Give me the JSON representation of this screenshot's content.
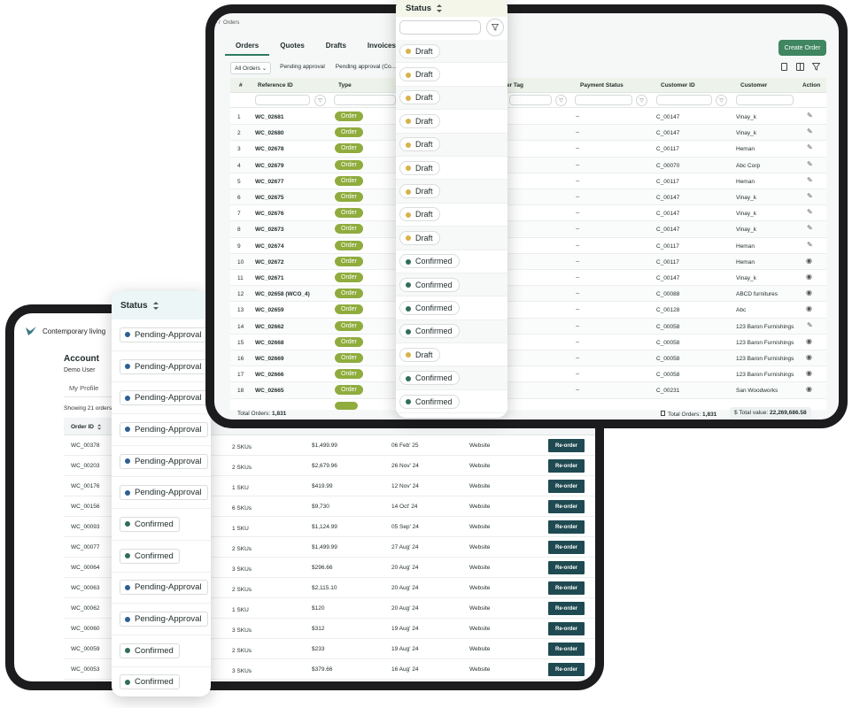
{
  "orders_screen": {
    "breadcrumb": "Orders",
    "tabs": [
      "Orders",
      "Quotes",
      "Drafts",
      "Invoices"
    ],
    "active_tab": "Orders",
    "create_button": "Create Order",
    "filters": [
      "All Orders",
      "Pending approval",
      "Pending approval (Co..."
    ],
    "columns": [
      "#",
      "Reference ID",
      "Type",
      "der Tag",
      "Payment Status",
      "Customer ID",
      "Customer",
      "Action"
    ],
    "rows": [
      {
        "n": "1",
        "ref": "WC_02681",
        "type": "Order",
        "pay": "--",
        "cid": "C_00147",
        "cust": "Vinay_k",
        "action": "edit"
      },
      {
        "n": "2",
        "ref": "WC_02680",
        "type": "Order",
        "pay": "--",
        "cid": "C_00147",
        "cust": "Vinay_k",
        "action": "edit"
      },
      {
        "n": "3",
        "ref": "WC_02678",
        "type": "Order",
        "pay": "--",
        "cid": "C_00117",
        "cust": "Heman",
        "action": "edit"
      },
      {
        "n": "4",
        "ref": "WC_02679",
        "type": "Order",
        "pay": "--",
        "cid": "C_00070",
        "cust": "Abc Corp",
        "action": "edit"
      },
      {
        "n": "5",
        "ref": "WC_02677",
        "type": "Order",
        "pay": "--",
        "cid": "C_00117",
        "cust": "Heman",
        "action": "edit"
      },
      {
        "n": "6",
        "ref": "WC_02675",
        "type": "Order",
        "pay": "--",
        "cid": "C_00147",
        "cust": "Vinay_k",
        "action": "edit"
      },
      {
        "n": "7",
        "ref": "WC_02676",
        "type": "Order",
        "pay": "--",
        "cid": "C_00147",
        "cust": "Vinay_k",
        "action": "edit"
      },
      {
        "n": "8",
        "ref": "WC_02673",
        "type": "Order",
        "pay": "--",
        "cid": "C_00147",
        "cust": "Vinay_k",
        "action": "edit"
      },
      {
        "n": "9",
        "ref": "WC_02674",
        "type": "Order",
        "pay": "--",
        "cid": "C_00117",
        "cust": "Heman",
        "action": "edit"
      },
      {
        "n": "10",
        "ref": "WC_02672",
        "type": "Order",
        "pay": "--",
        "cid": "C_00117",
        "cust": "Heman",
        "action": "view"
      },
      {
        "n": "11",
        "ref": "WC_02671",
        "type": "Order",
        "pay": "--",
        "cid": "C_00147",
        "cust": "Vinay_k",
        "action": "view"
      },
      {
        "n": "12",
        "ref": "WC_02658 (WCO_4)",
        "type": "Order",
        "pay": "--",
        "cid": "C_00088",
        "cust": "ABCD furnitures",
        "action": "view"
      },
      {
        "n": "13",
        "ref": "WC_02659",
        "type": "Order",
        "pay": "--",
        "cid": "C_00128",
        "cust": "Abc",
        "action": "view"
      },
      {
        "n": "14",
        "ref": "WC_02662",
        "type": "Order",
        "pay": "--",
        "cid": "C_00058",
        "cust": "123 Baron Furnishings",
        "action": "edit"
      },
      {
        "n": "15",
        "ref": "WC_02668",
        "type": "Order",
        "pay": "--",
        "cid": "C_00058",
        "cust": "123 Baron Furnishings",
        "action": "view"
      },
      {
        "n": "16",
        "ref": "WC_02669",
        "type": "Order",
        "pay": "--",
        "cid": "C_00058",
        "cust": "123 Baron Furnishings",
        "action": "view"
      },
      {
        "n": "17",
        "ref": "WC_02666",
        "type": "Order",
        "pay": "--",
        "cid": "C_00058",
        "cust": "123 Baron Furnishings",
        "action": "view"
      },
      {
        "n": "18",
        "ref": "WC_02665",
        "type": "Order",
        "pay": "--",
        "cid": "C_00231",
        "cust": "San Woodworks",
        "action": "view"
      }
    ],
    "footer_left_label": "Total Orders:",
    "footer_left_value": "1,831",
    "footer_mid_label": "Total Orders:",
    "footer_mid_value": "1,831",
    "footer_right_label": "Total value:",
    "footer_right_value": "22,269,686.58"
  },
  "status_popup_right": {
    "title": "Status",
    "items": [
      {
        "label": "Draft",
        "color": "#d8b24a"
      },
      {
        "label": "Draft",
        "color": "#d8b24a"
      },
      {
        "label": "Draft",
        "color": "#d8b24a"
      },
      {
        "label": "Draft",
        "color": "#d8b24a"
      },
      {
        "label": "Draft",
        "color": "#d8b24a"
      },
      {
        "label": "Draft",
        "color": "#d8b24a"
      },
      {
        "label": "Draft",
        "color": "#d8b24a"
      },
      {
        "label": "Draft",
        "color": "#d8b24a"
      },
      {
        "label": "Draft",
        "color": "#d8b24a"
      },
      {
        "label": "Confirmed",
        "color": "#2f6e5a"
      },
      {
        "label": "Confirmed",
        "color": "#2f6e5a"
      },
      {
        "label": "Confirmed",
        "color": "#2f6e5a"
      },
      {
        "label": "Confirmed",
        "color": "#2f6e5a"
      },
      {
        "label": "Draft",
        "color": "#d8b24a"
      },
      {
        "label": "Confirmed",
        "color": "#2f6e5a"
      },
      {
        "label": "Confirmed",
        "color": "#2f6e5a"
      }
    ]
  },
  "account_screen": {
    "brand": "Contemporary living",
    "title": "Account",
    "user": "Demo User",
    "tab_profile": "My Profile",
    "showing": "Showing 21 orders",
    "col_order_id": "Order ID",
    "reorder_label": "Re-order",
    "rows": [
      {
        "id": "WC_00378",
        "skus": "2 SKUs",
        "amount": "$1,499.99",
        "date": "06 Feb' 25",
        "channel": "Website"
      },
      {
        "id": "WC_00203",
        "skus": "2 SKUs",
        "amount": "$2,679.96",
        "date": "26 Nov' 24",
        "channel": "Website"
      },
      {
        "id": "WC_00176",
        "skus": "1 SKU",
        "amount": "$419.99",
        "date": "12 Nov' 24",
        "channel": "Website"
      },
      {
        "id": "WC_00156",
        "skus": "6 SKUs",
        "amount": "$9,730",
        "date": "14 Oct' 24",
        "channel": "Website"
      },
      {
        "id": "WC_00093",
        "skus": "1 SKU",
        "amount": "$1,124.99",
        "date": "05 Sep' 24",
        "channel": "Website"
      },
      {
        "id": "WC_00077",
        "skus": "2 SKUs",
        "amount": "$1,499.99",
        "date": "27 Aug' 24",
        "channel": "Website"
      },
      {
        "id": "WC_00064",
        "skus": "3 SKUs",
        "amount": "$296.66",
        "date": "20 Aug' 24",
        "channel": "Website"
      },
      {
        "id": "WC_00063",
        "skus": "2 SKUs",
        "amount": "$2,115.10",
        "date": "20 Aug' 24",
        "channel": "Website"
      },
      {
        "id": "WC_00062",
        "skus": "1 SKU",
        "amount": "$120",
        "date": "20 Aug' 24",
        "channel": "Website"
      },
      {
        "id": "WC_00060",
        "skus": "3 SKUs",
        "amount": "$312",
        "date": "19 Aug' 24",
        "channel": "Website"
      },
      {
        "id": "WC_00059",
        "skus": "2 SKUs",
        "amount": "$233",
        "date": "19 Aug' 24",
        "channel": "Website"
      },
      {
        "id": "WC_00053",
        "skus": "3 SKUs",
        "amount": "$379.66",
        "date": "16 Aug' 24",
        "channel": "Website"
      }
    ]
  },
  "status_popup_left": {
    "title": "Status",
    "items": [
      {
        "label": "Pending-Approval",
        "color": "#2c5f92"
      },
      {
        "label": "Pending-Approval",
        "color": "#2c5f92"
      },
      {
        "label": "Pending-Approval",
        "color": "#2c5f92"
      },
      {
        "label": "Pending-Approval",
        "color": "#2c5f92"
      },
      {
        "label": "Pending-Approval",
        "color": "#2c5f92"
      },
      {
        "label": "Pending-Approval",
        "color": "#2c5f92"
      },
      {
        "label": "Confirmed",
        "color": "#2f6e5a"
      },
      {
        "label": "Confirmed",
        "color": "#2f6e5a"
      },
      {
        "label": "Pending-Approval",
        "color": "#2c5f92"
      },
      {
        "label": "Pending-Approval",
        "color": "#2c5f92"
      },
      {
        "label": "Confirmed",
        "color": "#2f6e5a"
      },
      {
        "label": "Confirmed",
        "color": "#2f6e5a"
      }
    ]
  }
}
